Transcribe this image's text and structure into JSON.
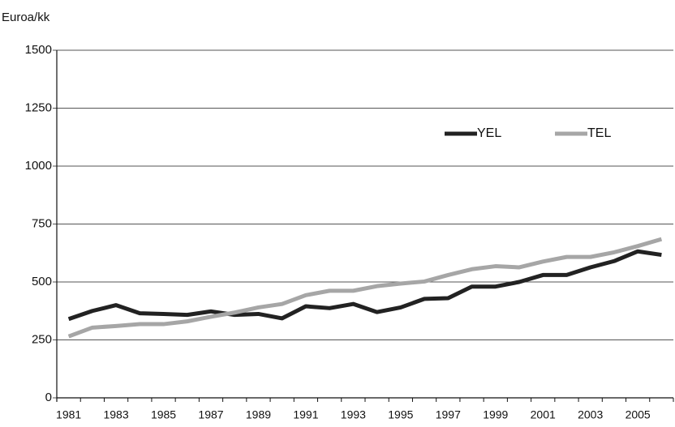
{
  "chart_data": {
    "type": "line",
    "y_label": "Euroa/kk",
    "categories": [
      "1981",
      null,
      "1983",
      null,
      "1985",
      null,
      "1987",
      null,
      "1989",
      null,
      "1991",
      null,
      "1993",
      null,
      "1995",
      null,
      "1997",
      null,
      "1999",
      null,
      "2001",
      null,
      "2003",
      null,
      "2005",
      null
    ],
    "series": [
      {
        "name": "YEL",
        "color": "#222222",
        "values": [
          340,
          375,
          400,
          365,
          362,
          358,
          373,
          358,
          362,
          343,
          395,
          387,
          405,
          370,
          390,
          427,
          430,
          480,
          480,
          500,
          530,
          530,
          563,
          590,
          632,
          617
        ]
      },
      {
        "name": "TEL",
        "color": "#a6a6a6",
        "values": [
          265,
          303,
          310,
          318,
          318,
          330,
          350,
          368,
          390,
          405,
          443,
          462,
          462,
          482,
          493,
          502,
          530,
          555,
          568,
          563,
          588,
          608,
          608,
          628,
          655,
          685
        ]
      }
    ],
    "ylim": [
      0,
      1500
    ],
    "yticks": [
      0,
      250,
      500,
      750,
      1000,
      1250,
      1500
    ],
    "grid": true
  }
}
